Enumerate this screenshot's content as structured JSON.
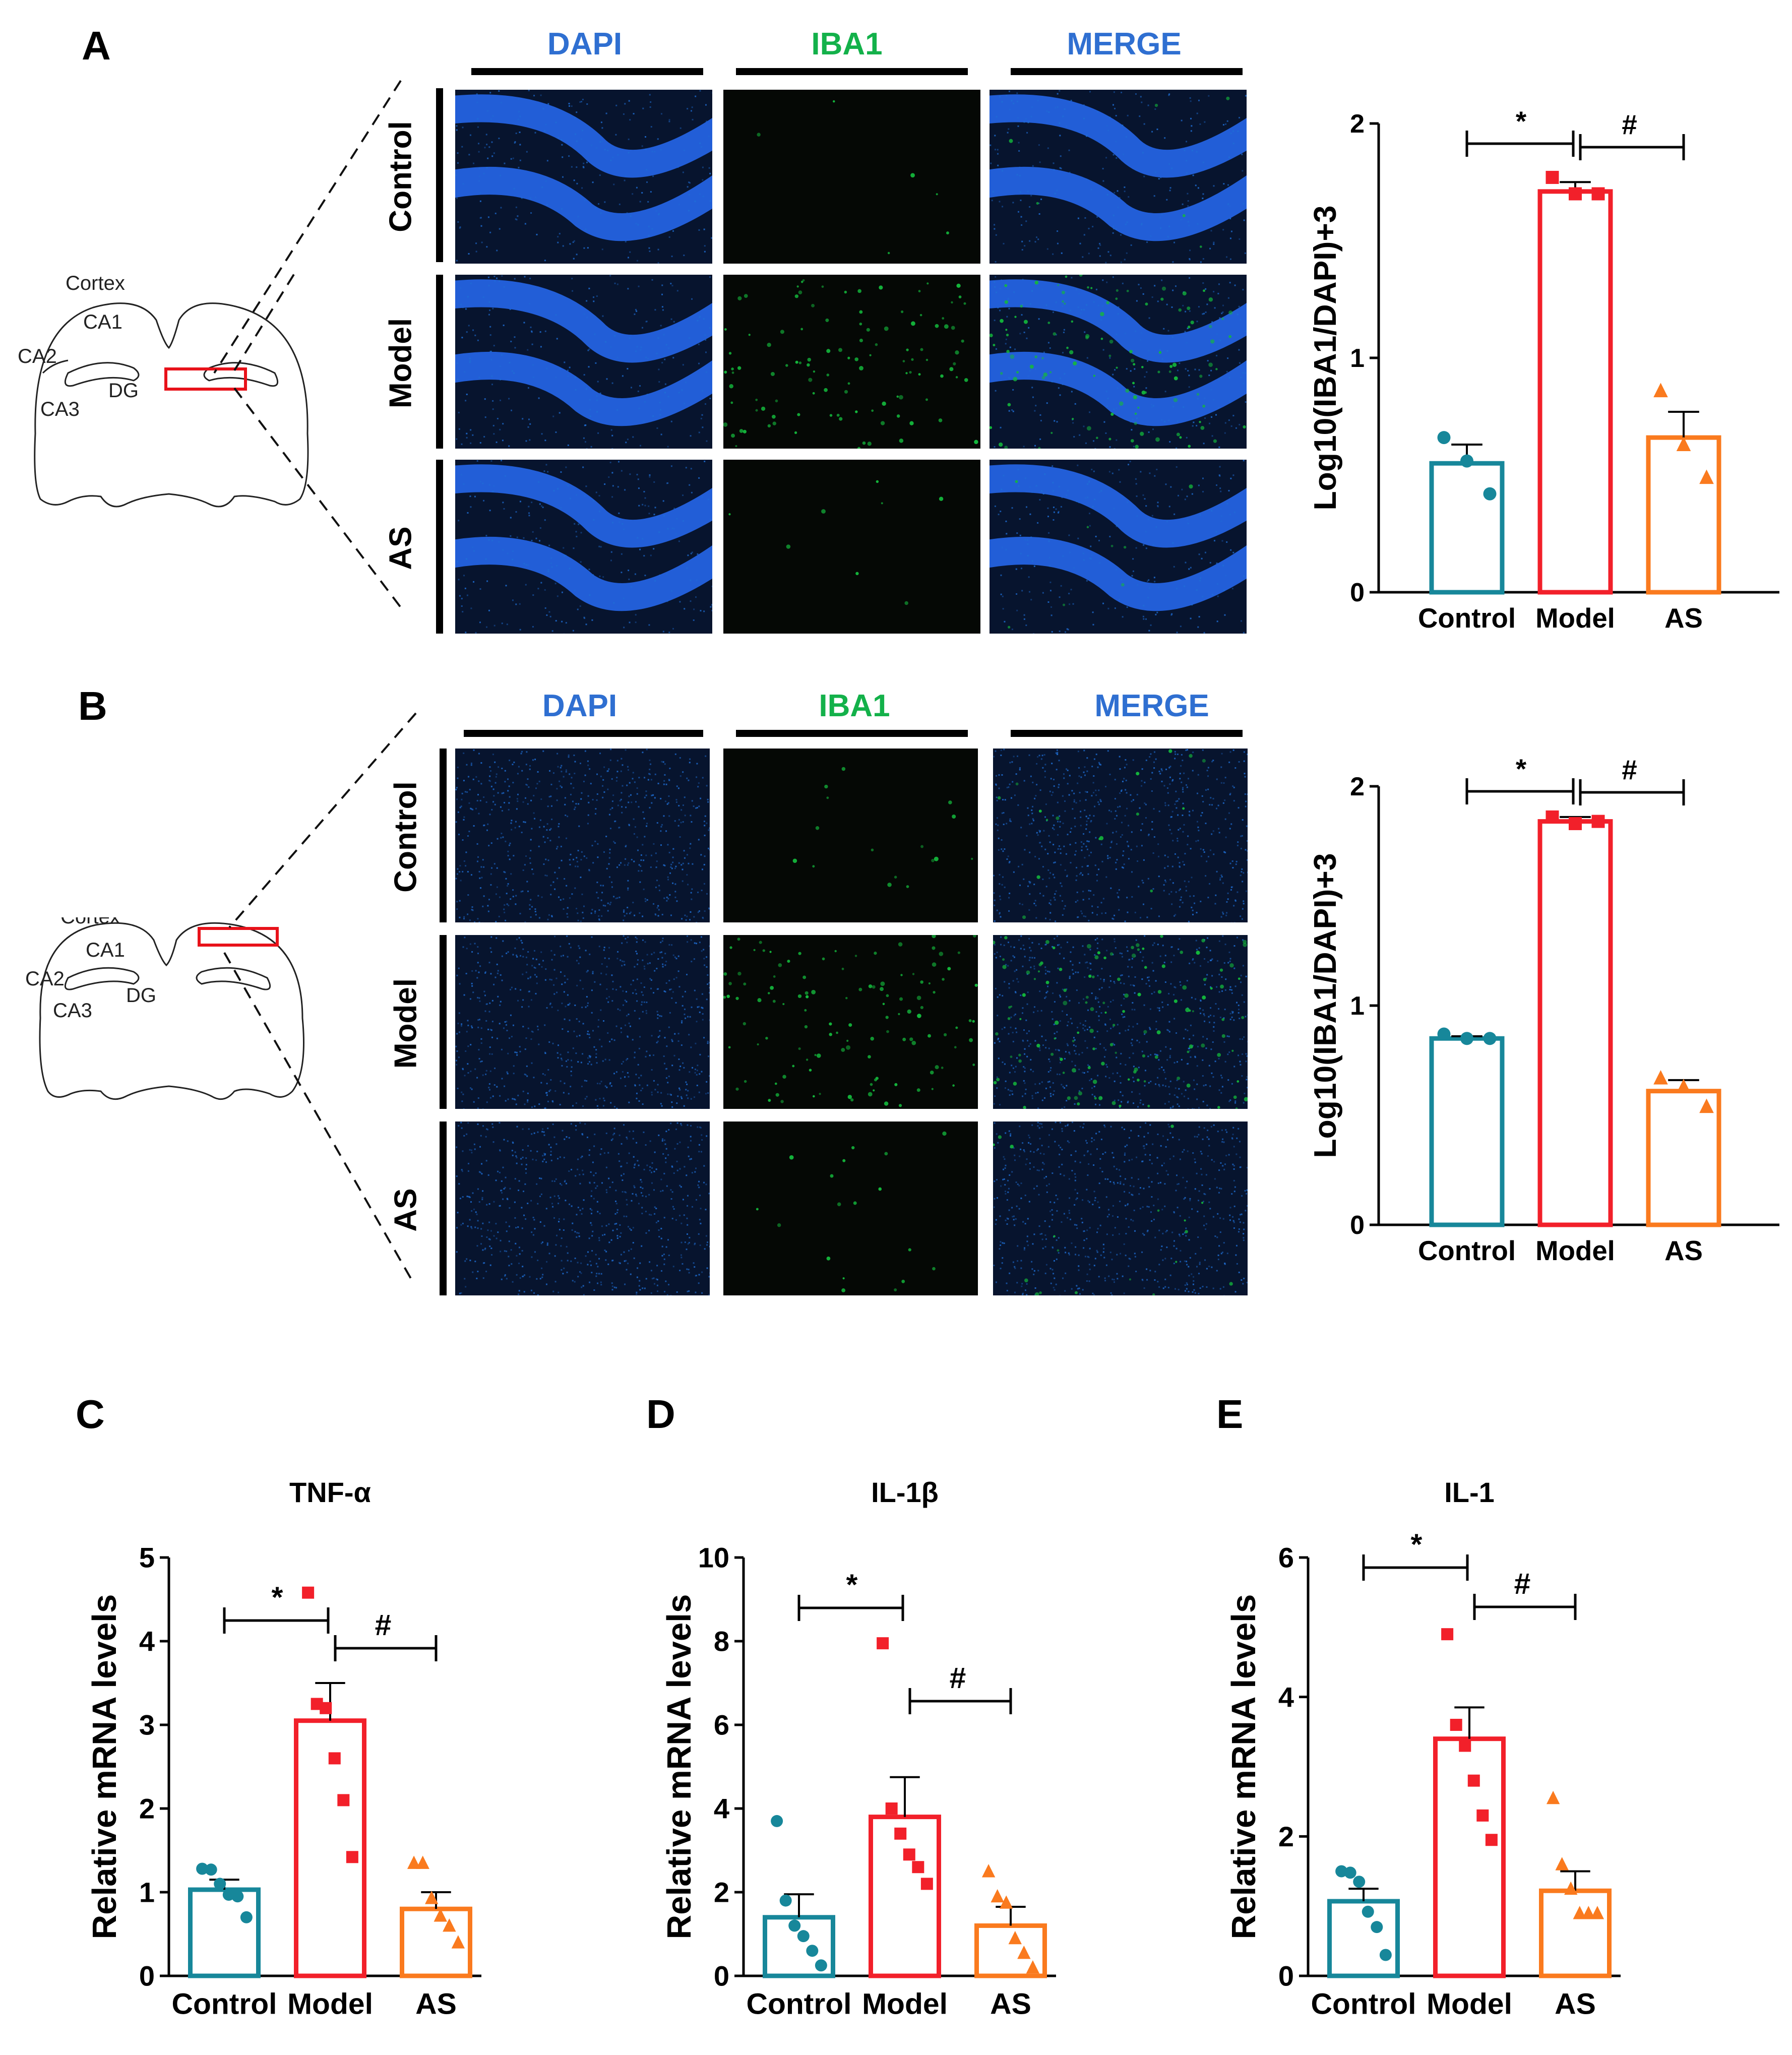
{
  "panels": {
    "A": {
      "label": "A",
      "channels": [
        "DAPI",
        "IBA1",
        "MERGE"
      ],
      "rows": [
        "Control",
        "Model",
        "AS"
      ],
      "atlas_labels": [
        "Cortex",
        "CA1",
        "CA2",
        "CA3",
        "DG"
      ]
    },
    "B": {
      "label": "B",
      "channels": [
        "DAPI",
        "IBA1",
        "MERGE"
      ],
      "rows": [
        "Control",
        "Model",
        "AS"
      ],
      "atlas_labels": [
        "Cortex",
        "CA1",
        "CA2",
        "CA3",
        "DG"
      ]
    },
    "C": {
      "label": "C"
    },
    "D": {
      "label": "D"
    },
    "E": {
      "label": "E"
    }
  },
  "colors": {
    "Control": "#17879a",
    "Model": "#f2202a",
    "AS": "#fa7a1e",
    "dapi": "#1f6fd6",
    "iba1": "#14b83c"
  },
  "chart_data": [
    {
      "id": "A",
      "type": "bar",
      "title": "",
      "xlabel": "",
      "ylabel": "Log10(IBA1/DAPI)+3",
      "ylim": [
        0,
        2
      ],
      "yticks": [
        "0",
        "1",
        "2"
      ],
      "categories": [
        "Control",
        "Model",
        "AS"
      ],
      "values": [
        0.55,
        1.71,
        0.66
      ],
      "sem": [
        0.08,
        0.04,
        0.11
      ],
      "points": [
        [
          0.66,
          0.56,
          0.42
        ],
        [
          1.77,
          1.7,
          1.7
        ],
        [
          0.86,
          0.63,
          0.49
        ]
      ],
      "markers": [
        "circle",
        "square",
        "triangle"
      ],
      "significance": [
        {
          "from": 0,
          "to": 1,
          "label": "*"
        },
        {
          "from": 1,
          "to": 2,
          "label": "#"
        }
      ]
    },
    {
      "id": "B",
      "type": "bar",
      "title": "",
      "xlabel": "",
      "ylabel": "Log10(IBA1/DAPI)+3",
      "ylim": [
        0,
        2
      ],
      "yticks": [
        "0",
        "1",
        "2"
      ],
      "categories": [
        "Control",
        "Model",
        "AS"
      ],
      "values": [
        0.85,
        1.84,
        0.61
      ],
      "sem": [
        0.01,
        0.02,
        0.05
      ],
      "points": [
        [
          0.87,
          0.85,
          0.85
        ],
        [
          1.86,
          1.83,
          1.84
        ],
        [
          0.67,
          0.63,
          0.54
        ]
      ],
      "markers": [
        "circle",
        "square",
        "triangle"
      ],
      "significance": [
        {
          "from": 0,
          "to": 1,
          "label": "*"
        },
        {
          "from": 1,
          "to": 2,
          "label": "#"
        }
      ]
    },
    {
      "id": "C",
      "type": "bar",
      "title": "TNF-α",
      "xlabel": "",
      "ylabel": "Relative mRNA levels",
      "ylim": [
        0,
        5
      ],
      "yticks": [
        "0",
        "1",
        "2",
        "3",
        "4",
        "5"
      ],
      "categories": [
        "Control",
        "Model",
        "AS"
      ],
      "values": [
        1.03,
        3.05,
        0.8
      ],
      "sem": [
        0.12,
        0.45,
        0.2
      ],
      "points": [
        [
          1.28,
          1.27,
          1.1,
          0.97,
          0.95,
          0.7
        ],
        [
          4.58,
          3.25,
          3.2,
          2.6,
          2.1,
          1.42
        ],
        [
          1.35,
          1.35,
          0.93,
          0.72,
          0.6,
          0.4
        ]
      ],
      "markers": [
        "circle",
        "square",
        "triangle"
      ],
      "significance": [
        {
          "from": 0,
          "to": 1,
          "label": "*"
        },
        {
          "from": 1,
          "to": 2,
          "label": "#"
        }
      ]
    },
    {
      "id": "D",
      "type": "bar",
      "title": "IL-1β",
      "xlabel": "",
      "ylabel": "Relative mRNA levels",
      "ylim": [
        0,
        10
      ],
      "yticks": [
        "0",
        "2",
        "4",
        "6",
        "8",
        "10"
      ],
      "categories": [
        "Control",
        "Model",
        "AS"
      ],
      "values": [
        1.4,
        3.8,
        1.2
      ],
      "sem": [
        0.55,
        0.95,
        0.45
      ],
      "points": [
        [
          3.7,
          1.8,
          1.2,
          0.95,
          0.6,
          0.25
        ],
        [
          7.95,
          4.0,
          3.4,
          2.9,
          2.6,
          2.2
        ],
        [
          2.5,
          1.9,
          1.75,
          0.9,
          0.55,
          0.2
        ]
      ],
      "markers": [
        "circle",
        "square",
        "triangle"
      ],
      "significance": [
        {
          "from": 0,
          "to": 1,
          "label": "*"
        },
        {
          "from": 1,
          "to": 2,
          "label": "#"
        }
      ]
    },
    {
      "id": "E",
      "type": "bar",
      "title": "IL-1",
      "xlabel": "",
      "ylabel": "Relative mRNA levels",
      "ylim": [
        0,
        6
      ],
      "yticks": [
        "0",
        "2",
        "4",
        "6"
      ],
      "categories": [
        "Control",
        "Model",
        "AS"
      ],
      "values": [
        1.07,
        3.4,
        1.22
      ],
      "sem": [
        0.18,
        0.45,
        0.28
      ],
      "points": [
        [
          1.5,
          1.48,
          1.35,
          0.92,
          0.7,
          0.3
        ],
        [
          4.9,
          3.6,
          3.3,
          2.8,
          2.3,
          1.95
        ],
        [
          2.55,
          1.6,
          1.25,
          0.9,
          0.9,
          0.9
        ]
      ],
      "markers": [
        "circle",
        "square",
        "triangle"
      ],
      "significance": [
        {
          "from": 0,
          "to": 1,
          "label": "*"
        },
        {
          "from": 1,
          "to": 2,
          "label": "#"
        }
      ]
    }
  ]
}
